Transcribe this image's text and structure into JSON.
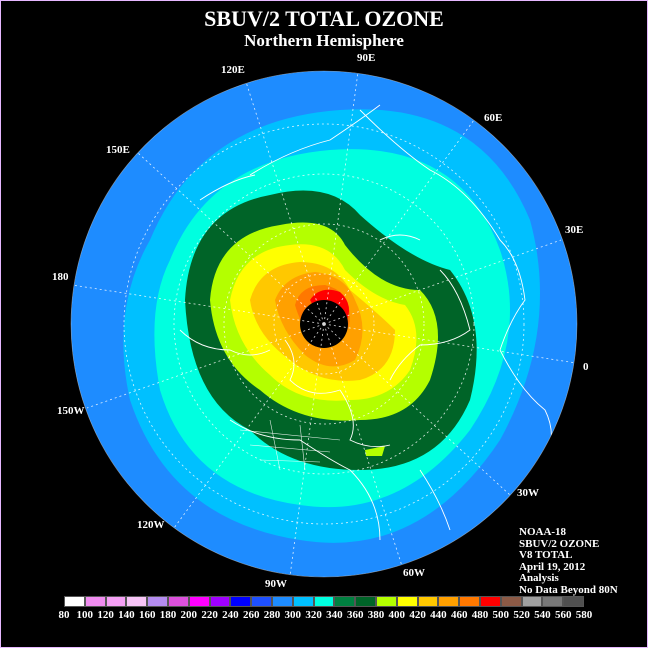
{
  "title": "SBUV/2 TOTAL OZONE",
  "subtitle": "Northern Hemisphere",
  "longitude_labels": {
    "e90": "90E",
    "e60": "60E",
    "e30": "30E",
    "zero": "0",
    "w30": "30W",
    "w60": "60W",
    "w90": "90W",
    "w120": "120W",
    "w150": "150W",
    "d180": "180",
    "e150": "150E",
    "e120": "120E"
  },
  "info": {
    "satellite": "NOAA-18",
    "product": "SBUV/2 OZONE",
    "version": "V8 TOTAL",
    "date": "April 19, 2012",
    "type": "Analysis",
    "note": "No Data Beyond 80N"
  },
  "colorbar": {
    "ticks": [
      "80",
      "100",
      "120",
      "140",
      "160",
      "180",
      "200",
      "220",
      "240",
      "260",
      "280",
      "300",
      "320",
      "340",
      "360",
      "380",
      "400",
      "420",
      "440",
      "460",
      "480",
      "500",
      "520",
      "540",
      "560",
      "580"
    ],
    "colors": [
      "#ffffff",
      "#f08cf0",
      "#f5a0f5",
      "#f7c4f7",
      "#b48cf0",
      "#dc50dc",
      "#ff00ff",
      "#a000ff",
      "#0000ff",
      "#1e50ff",
      "#1e8cff",
      "#00c0ff",
      "#00ffe0",
      "#008040",
      "#006428",
      "#b4ff00",
      "#ffff00",
      "#ffc800",
      "#ffa000",
      "#ff7800",
      "#ff0000",
      "#8c5a46",
      "#a0a0a0",
      "#787878",
      "#505050"
    ]
  }
}
